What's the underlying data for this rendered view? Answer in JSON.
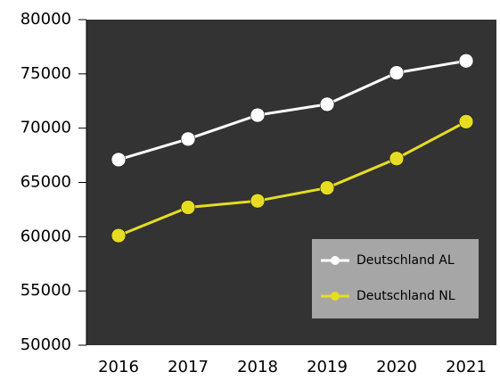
{
  "chart_data": {
    "type": "line",
    "categories": [
      "2016",
      "2017",
      "2018",
      "2019",
      "2020",
      "2021"
    ],
    "series": [
      {
        "name": "Deutschland AL",
        "color": "#ffffff",
        "values": [
          67100,
          69000,
          71200,
          72200,
          75100,
          76200
        ]
      },
      {
        "name": "Deutschland NL",
        "color": "#e6dd22",
        "values": [
          60100,
          62700,
          63300,
          64500,
          67200,
          70600
        ]
      }
    ],
    "ylim": [
      50000,
      80000
    ],
    "yticks": [
      50000,
      55000,
      60000,
      65000,
      70000,
      75000,
      80000
    ],
    "legend": "lower right",
    "background": "#333333"
  }
}
